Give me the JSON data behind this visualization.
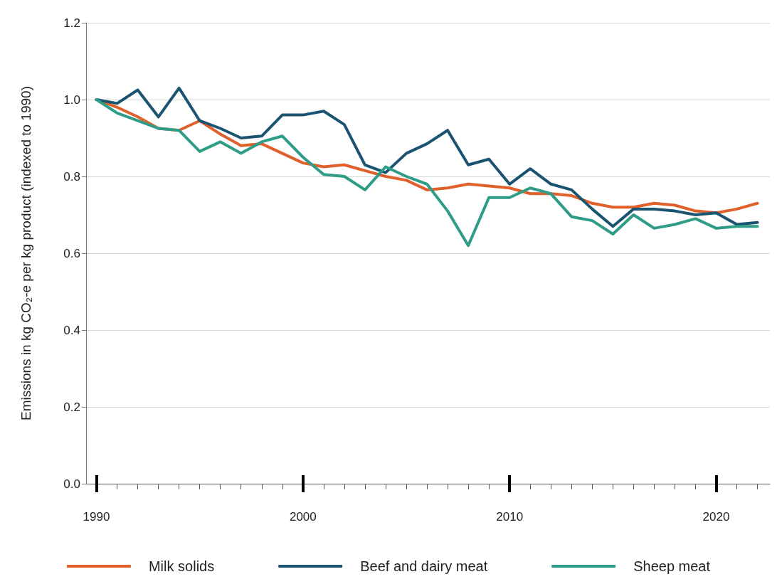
{
  "chart_data": {
    "type": "line",
    "ylabel": "Emissions in kg CO₂-e per kg product (indexed to 1990)",
    "x": [
      1990,
      1991,
      1992,
      1993,
      1994,
      1995,
      1996,
      1997,
      1998,
      1999,
      2000,
      2001,
      2002,
      2003,
      2004,
      2005,
      2006,
      2007,
      2008,
      2009,
      2010,
      2011,
      2012,
      2013,
      2014,
      2015,
      2016,
      2017,
      2018,
      2019,
      2020,
      2021,
      2022
    ],
    "series": [
      {
        "name": "Milk solids",
        "color": "#e0602c",
        "values": [
          1.0,
          0.98,
          0.955,
          0.925,
          0.92,
          0.945,
          0.91,
          0.88,
          0.885,
          0.86,
          0.835,
          0.825,
          0.83,
          0.815,
          0.8,
          0.79,
          0.765,
          0.77,
          0.78,
          0.775,
          0.77,
          0.755,
          0.755,
          0.75,
          0.73,
          0.72,
          0.72,
          0.73,
          0.725,
          0.71,
          0.705,
          0.715,
          0.73
        ]
      },
      {
        "name": "Beef and dairy meat",
        "color": "#1b5470",
        "values": [
          1.0,
          0.99,
          1.025,
          0.955,
          1.03,
          0.945,
          0.925,
          0.9,
          0.905,
          0.96,
          0.96,
          0.97,
          0.935,
          0.83,
          0.81,
          0.86,
          0.885,
          0.92,
          0.83,
          0.845,
          0.78,
          0.82,
          0.78,
          0.765,
          0.715,
          0.67,
          0.715,
          0.715,
          0.71,
          0.7,
          0.705,
          0.675,
          0.68
        ]
      },
      {
        "name": "Sheep meat",
        "color": "#2e9c87",
        "values": [
          1.0,
          0.965,
          0.945,
          0.925,
          0.92,
          0.865,
          0.89,
          0.86,
          0.89,
          0.905,
          0.85,
          0.805,
          0.8,
          0.765,
          0.825,
          0.8,
          0.78,
          0.71,
          0.62,
          0.745,
          0.745,
          0.77,
          0.755,
          0.695,
          0.685,
          0.65,
          0.7,
          0.665,
          0.675,
          0.69,
          0.665,
          0.67,
          0.67
        ]
      }
    ],
    "xlim": [
      1989.5,
      2022.6
    ],
    "xticks": [
      1990,
      {
        "value": 1991,
        "label": null
      },
      {
        "value": 1992,
        "label": null
      },
      {
        "value": 1993,
        "label": null
      },
      {
        "value": 1994,
        "label": null
      },
      {
        "value": 1995,
        "label": null
      },
      {
        "value": 1996,
        "label": null
      },
      {
        "value": 1997,
        "label": null
      },
      {
        "value": 1998,
        "label": null
      },
      {
        "value": 1999,
        "label": null
      },
      2000,
      {
        "value": 2001,
        "label": null
      },
      {
        "value": 2002,
        "label": null
      },
      {
        "value": 2003,
        "label": null
      },
      {
        "value": 2004,
        "label": null
      },
      {
        "value": 2005,
        "label": null
      },
      {
        "value": 2006,
        "label": null
      },
      {
        "value": 2007,
        "label": null
      },
      {
        "value": 2008,
        "label": null
      },
      {
        "value": 2009,
        "label": null
      },
      2010,
      {
        "value": 2011,
        "label": null
      },
      {
        "value": 2012,
        "label": null
      },
      {
        "value": 2013,
        "label": null
      },
      {
        "value": 2014,
        "label": null
      },
      {
        "value": 2015,
        "label": null
      },
      {
        "value": 2016,
        "label": null
      },
      {
        "value": 2017,
        "label": null
      },
      {
        "value": 2018,
        "label": null
      },
      {
        "value": 2019,
        "label": null
      },
      2020,
      {
        "value": 2021,
        "label": null
      },
      {
        "value": 2022,
        "label": null
      }
    ],
    "ylim": [
      0,
      1.2
    ],
    "yticks": [
      {
        "value": 0,
        "label": "0.0"
      },
      {
        "value": 0.2,
        "label": "0.2"
      },
      {
        "value": 0.4,
        "label": "0.4"
      },
      {
        "value": 0.6,
        "label": "0.6"
      },
      {
        "value": 0.8,
        "label": "0.8"
      },
      {
        "value": 1,
        "label": "1.0"
      },
      {
        "value": 1.2,
        "label": "1.2"
      }
    ],
    "grid": "y",
    "legend": "bottom",
    "marker": "none",
    "line_style": "solid"
  }
}
